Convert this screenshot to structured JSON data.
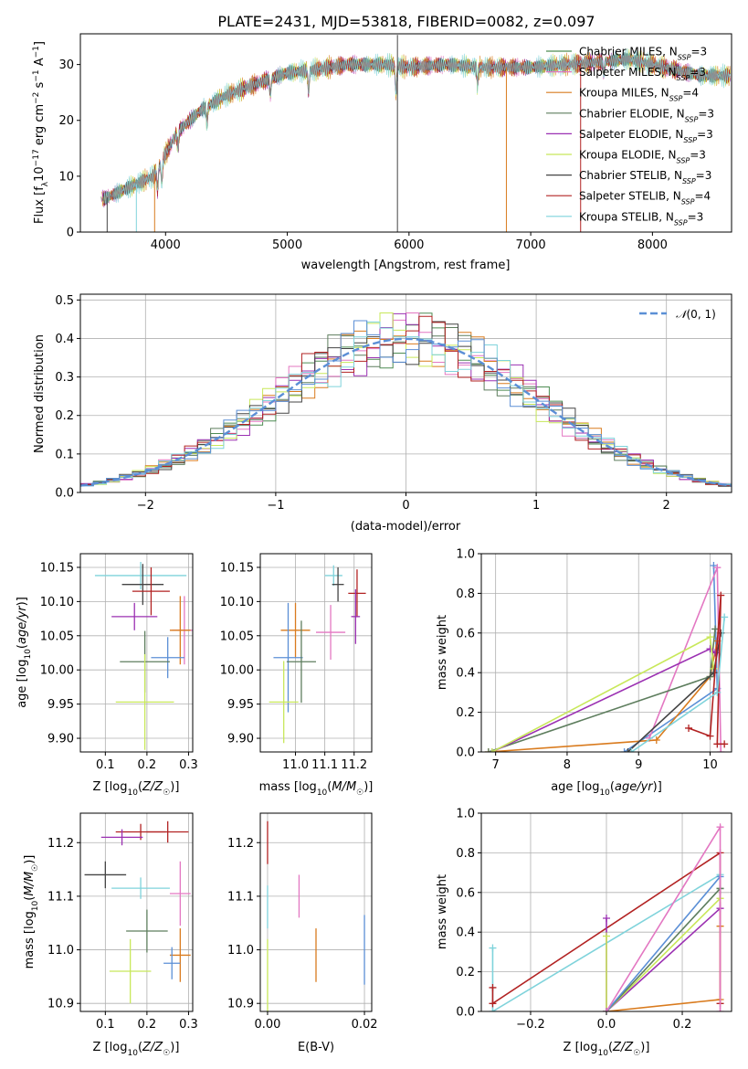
{
  "figure_title": "PLATE=2431, MJD=53818, FIBERID=0082, z=0.097",
  "chart_data": [
    {
      "id": "spectrum",
      "type": "line",
      "title": "PLATE=2431, MJD=53818, FIBERID=0082, z=0.097",
      "xlabel": "wavelength [Angstrom, rest frame]",
      "ylabel": "Flux [f_λ 10^-17 erg cm^-2 s^-1 A^-1]",
      "xlim": [
        3300,
        8650
      ],
      "ylim": [
        0,
        35.5
      ],
      "xticks": [
        4000,
        5000,
        6000,
        7000,
        8000
      ],
      "yticks": [
        0,
        10,
        20,
        30
      ],
      "legend_position": "upper-right",
      "continuum_knots": {
        "x": [
          3500,
          3700,
          3900,
          4000,
          4100,
          4300,
          4500,
          4800,
          5000,
          5200,
          5500,
          5800,
          6000,
          6300,
          6600,
          7000,
          7300,
          7600,
          7800,
          8000,
          8200,
          8400
        ],
        "y": [
          6,
          8,
          10,
          14,
          18,
          22,
          24.5,
          27,
          28.5,
          29,
          30,
          30,
          29.5,
          30,
          29.5,
          29.5,
          30,
          30.5,
          31,
          30,
          29,
          28
        ]
      },
      "series": [
        {
          "name": "Chabrier MILES, N_SSP=3",
          "color": "#4d8c52"
        },
        {
          "name": "Salpeter MILES, N_SSP=3",
          "color": "#e377c2"
        },
        {
          "name": "Kroupa MILES, N_SSP=4",
          "color": "#d97b1e"
        },
        {
          "name": "Chabrier ELODIE, N_SSP=3",
          "color": "#5e7e5e"
        },
        {
          "name": "Salpeter ELODIE, N_SSP=3",
          "color": "#9b30b2"
        },
        {
          "name": "Kroupa ELODIE, N_SSP=3",
          "color": "#c8e85a"
        },
        {
          "name": "Chabrier STELIB, N_SSP=3",
          "color": "#444444"
        },
        {
          "name": "Salpeter STELIB, N_SSP=4",
          "color": "#b22222"
        },
        {
          "name": "Kroupa STELIB, N_SSP=3",
          "color": "#7fd3db"
        }
      ]
    },
    {
      "id": "residuals",
      "type": "line",
      "xlabel": "(data-model)/error",
      "ylabel": "Normed distribution",
      "xlim": [
        -2.5,
        2.5
      ],
      "ylim": [
        0,
        0.515
      ],
      "xticks": [
        -2,
        -1,
        0,
        1,
        2
      ],
      "yticks": [
        0.0,
        0.1,
        0.2,
        0.3,
        0.4,
        0.5
      ],
      "grid": true,
      "legend_position": "upper-right",
      "reference_curve": {
        "name": "N(0,1)",
        "color": "#5b8fd6",
        "style": "dashed"
      }
    },
    {
      "id": "age_vs_Z",
      "type": "scatter",
      "xlabel": "Z [log10(Z/Z☉)]",
      "ylabel": "age [log10(age/yr)]",
      "xlim": [
        0.04,
        0.31
      ],
      "ylim": [
        9.88,
        10.17
      ],
      "xticks": [
        0.1,
        0.2,
        0.3
      ],
      "yticks": [
        9.9,
        9.95,
        10.0,
        10.05,
        10.1,
        10.15
      ],
      "grid": true,
      "points": [
        {
          "x": 0.185,
          "y": 10.138,
          "xerr": 0.11,
          "yerr": 0.02,
          "color": "#7fd3db"
        },
        {
          "x": 0.19,
          "y": 10.125,
          "xerr": 0.05,
          "yerr": 0.03,
          "color": "#444444"
        },
        {
          "x": 0.21,
          "y": 10.115,
          "xerr": 0.045,
          "yerr": 0.035,
          "color": "#b22222"
        },
        {
          "x": 0.17,
          "y": 10.078,
          "xerr": 0.055,
          "yerr": 0.02,
          "color": "#9b30b2"
        },
        {
          "x": 0.29,
          "y": 10.058,
          "xerr": 0.03,
          "yerr": 0.05,
          "color": "#e377c2"
        },
        {
          "x": 0.28,
          "y": 10.058,
          "xerr": 0.025,
          "yerr": 0.05,
          "color": "#d97b1e"
        },
        {
          "x": 0.25,
          "y": 10.018,
          "xerr": 0.04,
          "yerr": 0.03,
          "color": "#5b8fd6"
        },
        {
          "x": 0.195,
          "y": 10.012,
          "xerr": 0.06,
          "yerr": 0.045,
          "color": "#5e7e5e"
        },
        {
          "x": 0.195,
          "y": 9.953,
          "xerr": 0.07,
          "yerr": 0.07,
          "color": "#c8e85a"
        }
      ]
    },
    {
      "id": "age_vs_mass",
      "type": "scatter",
      "xlabel": "mass [log10(M/M☉)]",
      "ylabel": "",
      "xlim": [
        10.88,
        11.26
      ],
      "ylim": [
        9.88,
        10.17
      ],
      "xticks": [
        11.0,
        11.1,
        11.2
      ],
      "yticks": [
        9.9,
        9.95,
        10.0,
        10.05,
        10.1,
        10.15
      ],
      "grid": true,
      "points": [
        {
          "x": 11.13,
          "y": 10.138,
          "xerr": 0.03,
          "yerr": 0.015,
          "color": "#7fd3db"
        },
        {
          "x": 11.145,
          "y": 10.125,
          "xerr": 0.02,
          "yerr": 0.025,
          "color": "#444444"
        },
        {
          "x": 11.21,
          "y": 10.112,
          "xerr": 0.03,
          "yerr": 0.035,
          "color": "#b22222"
        },
        {
          "x": 11.205,
          "y": 10.078,
          "xerr": 0.015,
          "yerr": 0.04,
          "color": "#9b30b2"
        },
        {
          "x": 11.12,
          "y": 10.055,
          "xerr": 0.05,
          "yerr": 0.04,
          "color": "#e377c2"
        },
        {
          "x": 11.0,
          "y": 10.058,
          "xerr": 0.05,
          "yerr": 0.04,
          "color": "#d97b1e"
        },
        {
          "x": 10.975,
          "y": 10.018,
          "xerr": 0.05,
          "yerr": 0.08,
          "color": "#5b8fd6"
        },
        {
          "x": 11.02,
          "y": 10.012,
          "xerr": 0.05,
          "yerr": 0.06,
          "color": "#5e7e5e"
        },
        {
          "x": 10.96,
          "y": 9.953,
          "xerr": 0.05,
          "yerr": 0.06,
          "color": "#c8e85a"
        }
      ]
    },
    {
      "id": "weight_vs_age",
      "type": "line",
      "xlabel": "age [log10(age/yr)]",
      "ylabel": "mass weight",
      "xlim": [
        6.8,
        10.3
      ],
      "ylim": [
        0,
        1.0
      ],
      "xticks": [
        7,
        8,
        9,
        10
      ],
      "yticks": [
        0.0,
        0.2,
        0.4,
        0.6,
        0.8,
        1.0
      ],
      "grid": true,
      "series": [
        {
          "color": "#5b8fd6",
          "x": [
            8.8,
            10.1,
            10.05
          ],
          "y": [
            0.0,
            0.32,
            0.94
          ]
        },
        {
          "color": "#e377c2",
          "x": [
            9.15,
            10.1,
            10.15
          ],
          "y": [
            0.07,
            0.93,
            0.0
          ]
        },
        {
          "color": "#d97b1e",
          "x": [
            6.9,
            9.25,
            10.0,
            10.1
          ],
          "y": [
            0.0,
            0.06,
            0.38,
            0.56
          ]
        },
        {
          "color": "#5e7e5e",
          "x": [
            6.9,
            10.0,
            10.07
          ],
          "y": [
            0.0,
            0.38,
            0.62
          ]
        },
        {
          "color": "#9b30b2",
          "x": [
            6.95,
            10.0,
            10.07
          ],
          "y": [
            0.0,
            0.52,
            0.5
          ]
        },
        {
          "color": "#c8e85a",
          "x": [
            6.95,
            10.0,
            10.05
          ],
          "y": [
            0.0,
            0.58,
            0.42
          ]
        },
        {
          "color": "#444444",
          "x": [
            8.85,
            10.05,
            10.15
          ],
          "y": [
            0.0,
            0.4,
            0.6
          ]
        },
        {
          "color": "#b22222",
          "x": [
            9.7,
            10.0,
            10.15,
            10.1,
            10.2
          ],
          "y": [
            0.12,
            0.08,
            0.79,
            0.04,
            0.04
          ]
        },
        {
          "color": "#7fd3db",
          "x": [
            8.9,
            10.1,
            10.2
          ],
          "y": [
            0.0,
            0.3,
            0.68
          ]
        }
      ]
    },
    {
      "id": "mass_vs_Z",
      "type": "scatter",
      "xlabel": "Z [log10(Z/Z☉)]",
      "ylabel": "mass [log10(M/M☉)]",
      "xlim": [
        0.04,
        0.31
      ],
      "ylim": [
        10.885,
        11.255
      ],
      "xticks": [
        0.1,
        0.2,
        0.3
      ],
      "yticks": [
        10.9,
        11.0,
        11.1,
        11.2
      ],
      "grid": true,
      "points": [
        {
          "x": 0.185,
          "y": 11.22,
          "xerr": 0.06,
          "yerr": 0.015,
          "color": "#b22222"
        },
        {
          "x": 0.25,
          "y": 11.22,
          "xerr": 0.05,
          "yerr": 0.02,
          "color": "#b22222"
        },
        {
          "x": 0.14,
          "y": 11.21,
          "xerr": 0.05,
          "yerr": 0.015,
          "color": "#9b30b2"
        },
        {
          "x": 0.1,
          "y": 11.14,
          "xerr": 0.05,
          "yerr": 0.025,
          "color": "#444444"
        },
        {
          "x": 0.185,
          "y": 11.115,
          "xerr": 0.07,
          "yerr": 0.02,
          "color": "#7fd3db"
        },
        {
          "x": 0.28,
          "y": 11.105,
          "xerr": 0.025,
          "yerr": 0.06,
          "color": "#e377c2"
        },
        {
          "x": 0.2,
          "y": 11.035,
          "xerr": 0.05,
          "yerr": 0.04,
          "color": "#5e7e5e"
        },
        {
          "x": 0.28,
          "y": 10.99,
          "xerr": 0.025,
          "yerr": 0.05,
          "color": "#d97b1e"
        },
        {
          "x": 0.26,
          "y": 10.975,
          "xerr": 0.02,
          "yerr": 0.03,
          "color": "#5b8fd6"
        },
        {
          "x": 0.16,
          "y": 10.96,
          "xerr": 0.05,
          "yerr": 0.06,
          "color": "#c8e85a"
        }
      ]
    },
    {
      "id": "mass_vs_EBV",
      "type": "scatter",
      "xlabel": "E(B-V)",
      "ylabel": "",
      "xlim": [
        -0.0015,
        0.0215
      ],
      "ylim": [
        10.885,
        11.255
      ],
      "xticks": [
        0.0,
        0.02
      ],
      "yticks": [
        10.9,
        11.0,
        11.1,
        11.2
      ],
      "grid": true,
      "points": [
        {
          "x": 0.0,
          "y": 11.2,
          "yerr": 0.04,
          "color": "#b22222"
        },
        {
          "x": 0.0,
          "y": 11.08,
          "yerr": 0.04,
          "color": "#7fd3db"
        },
        {
          "x": 0.0,
          "y": 10.95,
          "yerr": 0.07,
          "color": "#c8e85a"
        },
        {
          "x": 0.0065,
          "y": 11.1,
          "yerr": 0.04,
          "color": "#e377c2"
        },
        {
          "x": 0.01,
          "y": 10.99,
          "yerr": 0.05,
          "color": "#d97b1e"
        },
        {
          "x": 0.02,
          "y": 11.0,
          "yerr": 0.065,
          "color": "#5b8fd6"
        }
      ]
    },
    {
      "id": "weight_vs_Z",
      "type": "line",
      "xlabel": "Z [log10(Z/Z☉)]",
      "ylabel": "mass weight",
      "xlim": [
        -0.33,
        0.33
      ],
      "ylim": [
        0,
        1.0
      ],
      "xticks": [
        -0.2,
        0.0,
        0.2
      ],
      "yticks": [
        0.0,
        0.2,
        0.4,
        0.6,
        0.8,
        1.0
      ],
      "grid": true,
      "series": [
        {
          "color": "#7fd3db",
          "x": [
            -0.3,
            -0.3,
            0.3
          ],
          "y": [
            0.32,
            0.0,
            0.69
          ]
        },
        {
          "color": "#b22222",
          "x": [
            -0.3,
            -0.3,
            0.3,
            0.3
          ],
          "y": [
            0.12,
            0.04,
            0.8,
            0.04
          ]
        },
        {
          "color": "#9b30b2",
          "x": [
            0.0,
            0.0,
            0.3,
            0.3
          ],
          "y": [
            0.47,
            0.0,
            0.52,
            0.52
          ]
        },
        {
          "color": "#c8e85a",
          "x": [
            0.0,
            0.0,
            0.3,
            0.3
          ],
          "y": [
            0.38,
            0.0,
            0.57,
            0.57
          ]
        },
        {
          "color": "#d97b1e",
          "x": [
            0.0,
            0.3,
            0.3
          ],
          "y": [
            0.0,
            0.06,
            0.43
          ]
        },
        {
          "color": "#5e7e5e",
          "x": [
            0.0,
            0.3,
            0.3
          ],
          "y": [
            0.0,
            0.62,
            0.62
          ]
        },
        {
          "color": "#5b8fd6",
          "x": [
            0.0,
            0.3
          ],
          "y": [
            0.0,
            0.68
          ]
        },
        {
          "color": "#e377c2",
          "x": [
            0.0,
            0.3,
            0.3
          ],
          "y": [
            0.0,
            0.93,
            0.0
          ]
        }
      ]
    }
  ]
}
